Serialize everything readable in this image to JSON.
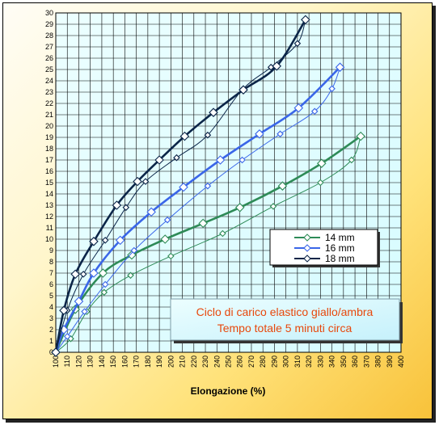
{
  "chart_data": {
    "type": "line",
    "xlabel": "Elongazione (%)",
    "ylabel": "",
    "xlim": [
      100,
      400
    ],
    "ylim": [
      0,
      30
    ],
    "x_ticks": [
      100,
      110,
      120,
      130,
      140,
      150,
      160,
      170,
      180,
      190,
      200,
      210,
      220,
      230,
      240,
      250,
      260,
      270,
      280,
      290,
      300,
      310,
      320,
      330,
      340,
      350,
      360,
      370,
      380,
      390,
      400
    ],
    "y_ticks": [
      0,
      1,
      2,
      3,
      4,
      5,
      6,
      7,
      8,
      9,
      10,
      11,
      12,
      13,
      14,
      15,
      16,
      17,
      18,
      19,
      20,
      21,
      22,
      23,
      24,
      25,
      26,
      27,
      28,
      29,
      30
    ],
    "grid": true,
    "legend_position": "right",
    "annotation": [
      "Ciclo di carico  elastico giallo/ambra",
      "Tempo totale 5 minuti circa"
    ],
    "series": [
      {
        "name": "14 mm",
        "color": "#2e8b57",
        "loading": {
          "x": [
            100,
            117,
            141,
            166,
            195,
            228,
            260,
            297,
            331,
            365
          ],
          "y": [
            0,
            3.8,
            7,
            8.6,
            10,
            11.4,
            12.8,
            14.7,
            16.7,
            19.1
          ]
        },
        "unloading": {
          "x": [
            100,
            113,
            127,
            142,
            165,
            200,
            245,
            289,
            330,
            357,
            365
          ],
          "y": [
            0,
            1.2,
            3.6,
            5.3,
            6.8,
            8.5,
            10.5,
            12.9,
            15,
            17,
            19.1
          ]
        }
      },
      {
        "name": "16 mm",
        "color": "#3a66e8",
        "loading": {
          "x": [
            100,
            107,
            120,
            133,
            156,
            183,
            211,
            243,
            277,
            311,
            347
          ],
          "y": [
            0,
            2,
            4.5,
            7,
            9.9,
            12.4,
            14.6,
            17,
            19.3,
            21.6,
            25.2
          ]
        },
        "unloading": {
          "x": [
            100,
            110,
            125,
            143,
            168,
            197,
            232,
            262,
            295,
            325,
            340,
            347
          ],
          "y": [
            0,
            1.4,
            3.6,
            6,
            9,
            11.7,
            14.7,
            17,
            19.3,
            21.3,
            23.3,
            25.2
          ]
        }
      },
      {
        "name": "18 mm",
        "color": "#0b2548",
        "loading": {
          "x": [
            100,
            107,
            117,
            133,
            153,
            171,
            190,
            212,
            237,
            263,
            292,
            317
          ],
          "y": [
            0,
            3.7,
            6.9,
            9.8,
            13,
            15.1,
            17,
            19.1,
            21.2,
            23.2,
            25.3,
            29.4
          ]
        },
        "unloading": {
          "x": [
            100,
            110,
            124,
            143,
            161,
            178,
            205,
            232,
            262,
            287,
            310,
            317
          ],
          "y": [
            0,
            3.7,
            6.9,
            9.9,
            12.8,
            15.1,
            17.2,
            19.2,
            23.2,
            25.2,
            27.3,
            29.4
          ]
        }
      }
    ]
  }
}
